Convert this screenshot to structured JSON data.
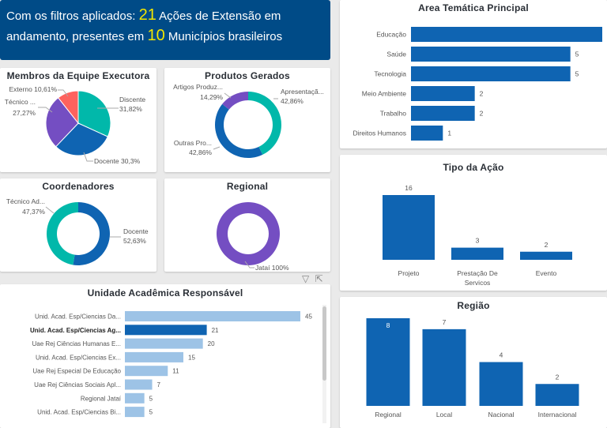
{
  "banner": {
    "prefix": "Com os filtros aplicados: ",
    "count_actions": "21",
    "middle": " Ações de Extensão em andamento, presentes em ",
    "count_municipalities": "10",
    "suffix": " Municípios brasileiros"
  },
  "chart_data": [
    {
      "id": "membros",
      "type": "pie",
      "title": "Membros da Equipe Executora",
      "slices": [
        {
          "label": "Discente",
          "percent": 31.82,
          "value_label": "31,82%",
          "color": "#01b8aa"
        },
        {
          "label": "Docente",
          "percent": 30.3,
          "value_label": "30,3%",
          "color": "#0f64b2"
        },
        {
          "label": "Técnico ...",
          "percent": 27.27,
          "value_label": "27,27%",
          "color": "#744ec2"
        },
        {
          "label": "Externo",
          "percent": 10.61,
          "value_label": "10,61%",
          "color": "#fd625e"
        }
      ]
    },
    {
      "id": "produtos",
      "type": "donut",
      "title": "Produtos Gerados",
      "slices": [
        {
          "label": "Apresentaçã...",
          "percent": 42.86,
          "value_label": "42,86%",
          "color": "#01b8aa"
        },
        {
          "label": "Outras Pro...",
          "percent": 42.86,
          "value_label": "42,86%",
          "color": "#0f64b2"
        },
        {
          "label": "Artigos Produz...",
          "percent": 14.29,
          "value_label": "14,29%",
          "color": "#744ec2"
        }
      ]
    },
    {
      "id": "coordenadores",
      "type": "donut",
      "title": "Coordenadores",
      "slices": [
        {
          "label": "Docente",
          "percent": 52.63,
          "value_label": "52,63%",
          "color": "#0f64b2"
        },
        {
          "label": "Técnico Ad...",
          "percent": 47.37,
          "value_label": "47,37%",
          "color": "#01b8aa"
        }
      ]
    },
    {
      "id": "regional",
      "type": "donut",
      "title": "Regional",
      "slices": [
        {
          "label": "Jataí",
          "percent": 100,
          "value_label": "100%",
          "color": "#744ec2"
        }
      ]
    },
    {
      "id": "area",
      "type": "bar",
      "orientation": "horizontal",
      "title": "Area Temática Principal",
      "categories": [
        "Educação",
        "Saúde",
        "Tecnologia",
        "Meio Ambiente",
        "Trabalho",
        "Direitos Humanos"
      ],
      "values": [
        6,
        5,
        5,
        2,
        2,
        1
      ],
      "xlim": [
        0,
        6
      ],
      "color": "#0f64b2"
    },
    {
      "id": "tipo",
      "type": "bar",
      "orientation": "vertical",
      "title": "Tipo da Ação",
      "categories": [
        "Projeto",
        "Prestação De Servicos",
        "Evento"
      ],
      "values": [
        16,
        3,
        2
      ],
      "ylim": [
        0,
        16
      ],
      "color": "#0f64b2"
    },
    {
      "id": "regiao",
      "type": "bar",
      "orientation": "vertical",
      "title": "Região",
      "categories": [
        "Regional",
        "Local",
        "Nacional",
        "Internacional"
      ],
      "values": [
        8,
        7,
        4,
        2
      ],
      "ylim": [
        0,
        8
      ],
      "color": "#0f64b2"
    },
    {
      "id": "unidade",
      "type": "bar",
      "orientation": "horizontal",
      "title": "Unidade Acadêmica Responsável",
      "categories": [
        "Unid. Acad. Esp/Ciencias Da...",
        "Unid. Acad. Esp/Ciencias Ag...",
        "Uae Rej Ciências Humanas E...",
        "Unid. Acad. Esp/Ciencias Ex...",
        "Uae Rej Especial De Educação",
        "Uae Rej Ciências Sociais Apl...",
        "Regional Jataí",
        "Unid. Acad. Esp/Ciencias Bi..."
      ],
      "values": [
        45,
        21,
        20,
        15,
        11,
        7,
        5,
        5
      ],
      "highlighted": "Unid. Acad. Esp/Ciencias Ag...",
      "xlim": [
        0,
        45
      ],
      "color": "#9dc3e6",
      "highlight_color": "#0f64b2"
    }
  ]
}
